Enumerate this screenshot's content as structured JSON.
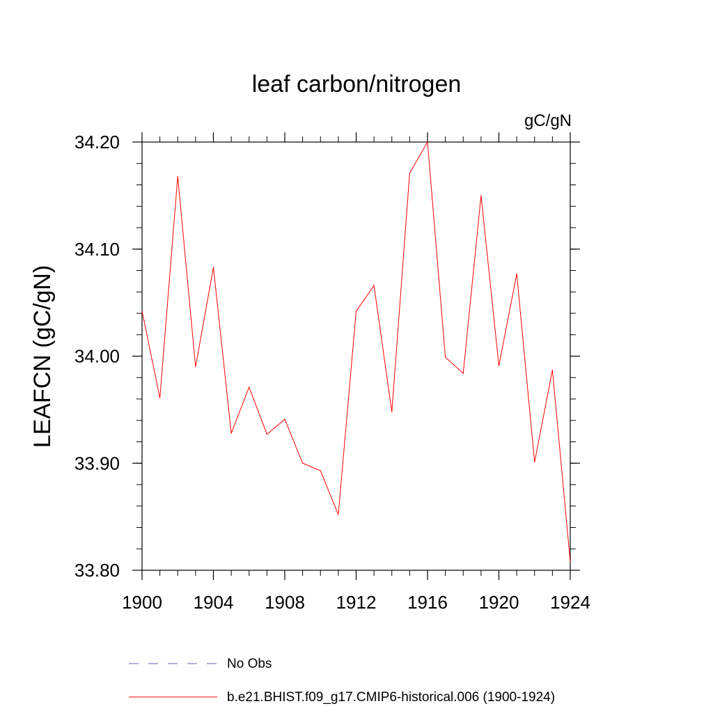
{
  "chart_data": {
    "type": "line",
    "title": "leaf carbon/nitrogen",
    "units_label": "gC/gN",
    "ylabel": "LEAFCN  (gC/gN)",
    "xlabel": "",
    "xlim": [
      1900,
      1924
    ],
    "ylim": [
      33.8,
      34.2
    ],
    "x_ticks": [
      1900,
      1904,
      1908,
      1912,
      1916,
      1920,
      1924
    ],
    "x_tick_labels": [
      "1900",
      "1904",
      "1908",
      "1912",
      "1916",
      "1920",
      "1924"
    ],
    "y_ticks": [
      33.8,
      33.9,
      34.0,
      34.1,
      34.2
    ],
    "y_tick_labels": [
      "33.80",
      "33.90",
      "34.00",
      "34.10",
      "34.20"
    ],
    "x_minor_step": 1,
    "y_minor_step": 0.02,
    "grid": false,
    "legend_position": "bottom",
    "series": [
      {
        "name": "b.e21.BHIST.f09_g17.CMIP6-historical.006 (1900-1924)",
        "color": "#ff0000",
        "style": "solid",
        "x": [
          1900,
          1901,
          1902,
          1903,
          1904,
          1905,
          1906,
          1907,
          1908,
          1909,
          1910,
          1911,
          1912,
          1913,
          1914,
          1915,
          1916,
          1917,
          1918,
          1919,
          1920,
          1921,
          1922,
          1923,
          1924
        ],
        "values": [
          34.042,
          33.961,
          34.168,
          33.99,
          34.083,
          33.928,
          33.971,
          33.927,
          33.941,
          33.9,
          33.893,
          33.852,
          34.042,
          34.066,
          33.948,
          34.171,
          34.2,
          33.999,
          33.984,
          34.15,
          33.991,
          34.077,
          33.901,
          33.987,
          33.808
        ]
      }
    ],
    "legend": [
      {
        "label": "No Obs",
        "color": "#6666bb",
        "style": "dashed"
      },
      {
        "label": "b.e21.BHIST.f09_g17.CMIP6-historical.006 (1900-1924)",
        "color": "#ff0000",
        "style": "solid"
      }
    ]
  }
}
